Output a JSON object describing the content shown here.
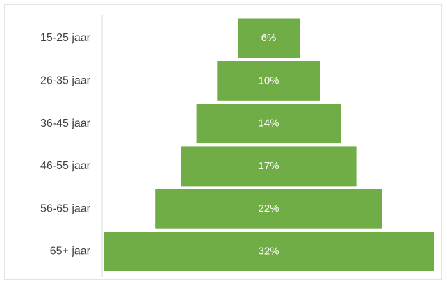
{
  "chart_data": {
    "type": "bar",
    "orientation": "horizontal",
    "layout": "centered-pyramid",
    "categories": [
      "15-25 jaar",
      "26-35 jaar",
      "36-45 jaar",
      "46-55 jaar",
      "56-65 jaar",
      "65+ jaar"
    ],
    "values": [
      6,
      10,
      14,
      17,
      22,
      32
    ],
    "value_labels": [
      "6%",
      "10%",
      "14%",
      "17%",
      "22%",
      "32%"
    ],
    "unit": "%",
    "title": "",
    "xlabel": "",
    "ylabel": "",
    "xlim": [
      0,
      32
    ],
    "grid": false,
    "legend": "none",
    "colors": {
      "bar": "#70ad47",
      "value_label": "#ffffff",
      "category_label": "#404040",
      "axis": "#d9d9d9"
    }
  }
}
